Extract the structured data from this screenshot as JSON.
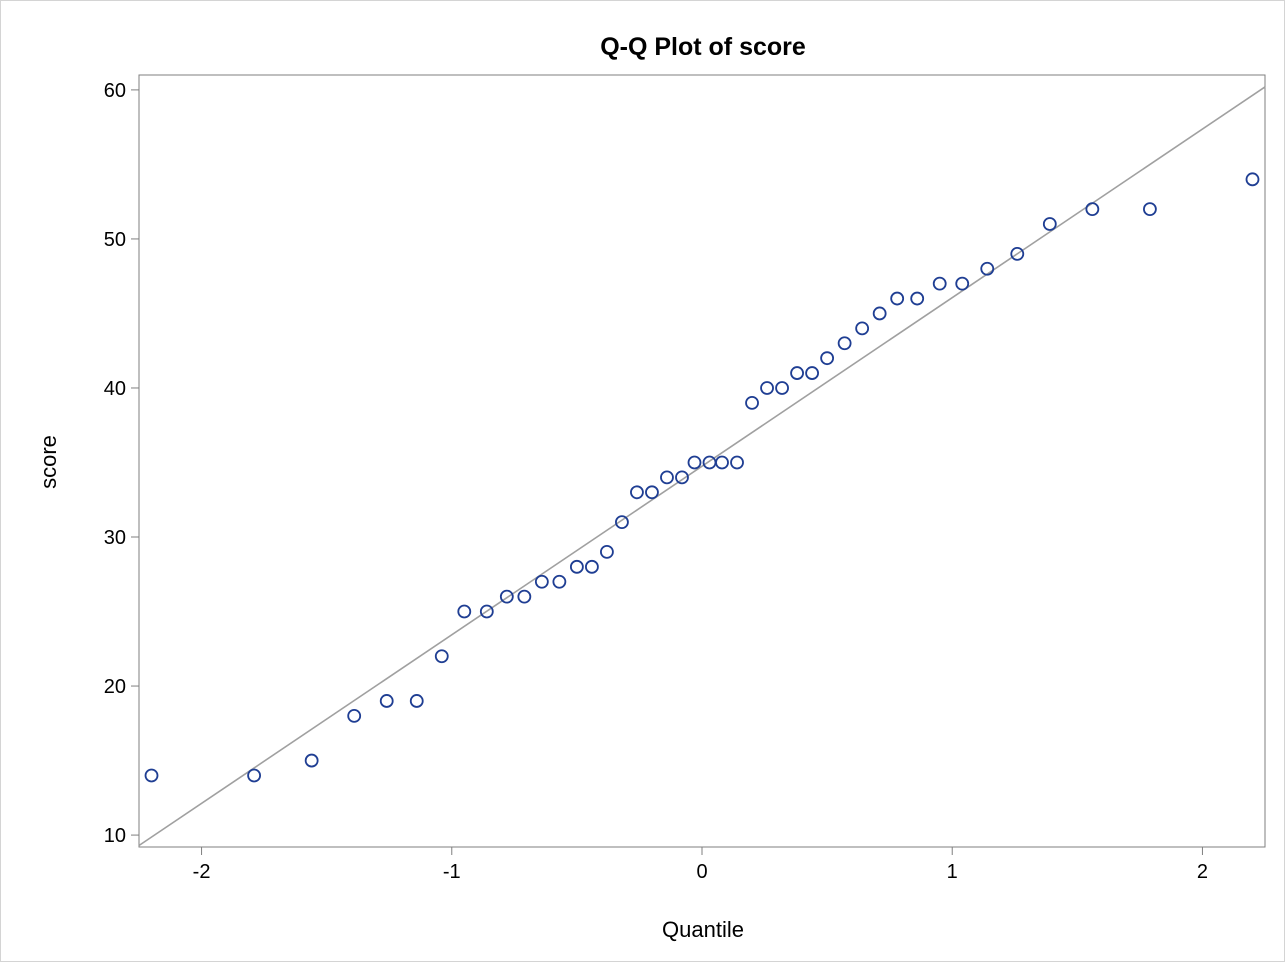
{
  "chart_data": {
    "type": "scatter",
    "title": "Q-Q Plot of score",
    "xlabel": "Quantile",
    "ylabel": "score",
    "xlim": [
      -2.25,
      2.25
    ],
    "ylim": [
      9.2,
      61
    ],
    "xticks": [
      -2,
      -1,
      0,
      1,
      2
    ],
    "xtick_labels": [
      "-2",
      "-1",
      "0",
      "1",
      "2"
    ],
    "yticks": [
      10,
      20,
      30,
      40,
      50,
      60
    ],
    "ytick_labels": [
      "10",
      "20",
      "30",
      "40",
      "50",
      "60"
    ],
    "grid": false,
    "reference_line": {
      "x": [
        -2.25,
        2.25
      ],
      "y": [
        9.3,
        60.2
      ]
    },
    "points": {
      "x": [
        -2.2,
        -1.79,
        -1.56,
        -1.39,
        -1.26,
        -1.14,
        -1.04,
        -0.95,
        -0.86,
        -0.78,
        -0.71,
        -0.64,
        -0.57,
        -0.5,
        -0.44,
        -0.38,
        -0.32,
        -0.26,
        -0.2,
        -0.14,
        -0.08,
        -0.03,
        0.03,
        0.08,
        0.14,
        0.2,
        0.26,
        0.32,
        0.38,
        0.44,
        0.5,
        0.57,
        0.64,
        0.71,
        0.78,
        0.86,
        0.95,
        1.04,
        1.14,
        1.26,
        1.39,
        1.56,
        1.79,
        2.2
      ],
      "y": [
        14,
        14,
        15,
        18,
        19,
        19,
        22,
        25,
        25,
        26,
        26,
        27,
        27,
        28,
        28,
        29,
        31,
        33,
        33,
        34,
        34,
        35,
        35,
        35,
        35,
        39,
        40,
        40,
        41,
        41,
        42,
        43,
        44,
        45,
        46,
        46,
        47,
        47,
        48,
        49,
        51,
        52,
        52,
        54
      ]
    },
    "colors": {
      "marker": "#1f3e93",
      "reference_line": "#a0a0a0",
      "axis": "#7f7f7f"
    }
  }
}
